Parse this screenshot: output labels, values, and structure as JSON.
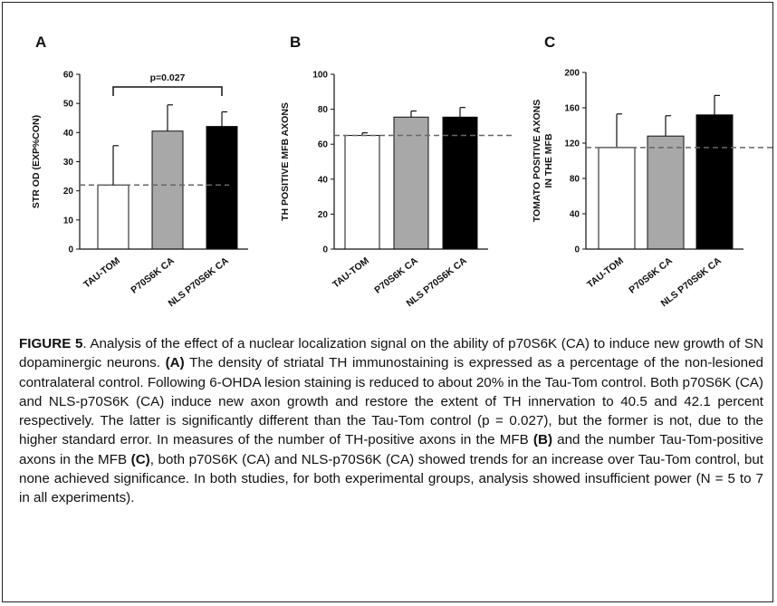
{
  "chart_data": [
    {
      "type": "bar",
      "panel_letter": "A",
      "ylabel": "STR OD (EXP%CON)",
      "categories": [
        "TAU-TOM",
        "P70S6K CA",
        "NLS P70S6K CA"
      ],
      "values": [
        22,
        40.5,
        42.1
      ],
      "errors": [
        13.5,
        9,
        5
      ],
      "ylim": [
        0,
        60
      ],
      "ticks": [
        0,
        10,
        20,
        30,
        40,
        50,
        60
      ],
      "reference_line": 22,
      "bar_colors": [
        "#ffffff",
        "#a8a8a8",
        "#000000"
      ],
      "annotation": "p=0.027"
    },
    {
      "type": "bar",
      "panel_letter": "B",
      "ylabel": "TH POSITIVE MFB AXONS",
      "categories": [
        "TAU-TOM",
        "P70S6K CA",
        "NLS P70S6K CA"
      ],
      "values": [
        65,
        75.5,
        75.5
      ],
      "errors": [
        1.5,
        3.5,
        5.5
      ],
      "ylim": [
        0,
        100
      ],
      "ticks": [
        0,
        20,
        40,
        60,
        80,
        100
      ],
      "reference_line": 65,
      "bar_colors": [
        "#ffffff",
        "#a8a8a8",
        "#000000"
      ]
    },
    {
      "type": "bar",
      "panel_letter": "C",
      "ylabel": "TOMATO POSITIVE AXONS IN THE MFB",
      "ylabel_lines": [
        "TOMATO POSITIVE AXONS",
        "IN THE MFB"
      ],
      "categories": [
        "TAU-TOM",
        "P70S6K CA",
        "NLS P70S6K CA"
      ],
      "values": [
        115,
        128,
        152
      ],
      "errors": [
        38,
        23,
        22
      ],
      "ylim": [
        0,
        200
      ],
      "ticks": [
        0,
        40,
        80,
        120,
        160,
        200
      ],
      "reference_line": 115,
      "bar_colors": [
        "#ffffff",
        "#a8a8a8",
        "#000000"
      ]
    }
  ],
  "caption": {
    "figure_label": "FIGURE 5",
    "part1": ".  Analysis of the effect of a nuclear localization signal on the ability of p70S6K (CA) to induce new growth of SN dopaminergic neurons.  ",
    "label_a": "(A)",
    "part2": " The density of striatal TH immunostaining is expressed as a percentage of the non-lesioned contralateral control.  Following 6-OHDA lesion staining is reduced to about 20% in the Tau-Tom control.  Both p70S6K (CA) and NLS-p70S6K (CA) induce new axon growth and restore the extent of TH innervation to 40.5 and 42.1 percent respectively.  The latter is significantly different than the Tau-Tom control (p = 0.027), but the former is not, due to the higher standard error.  In measures of the number of TH-positive axons in the MFB ",
    "label_b": "(B)",
    "part3": " and the number Tau-Tom-positive axons in the MFB ",
    "label_c": "(C)",
    "part4": ", both p70S6K (CA) and NLS-p70S6K (CA) showed trends for an increase over Tau-Tom control, but none achieved significance.  In both studies, for both experimental groups, analysis showed insufficient power (N = 5 to 7 in all experiments)."
  }
}
